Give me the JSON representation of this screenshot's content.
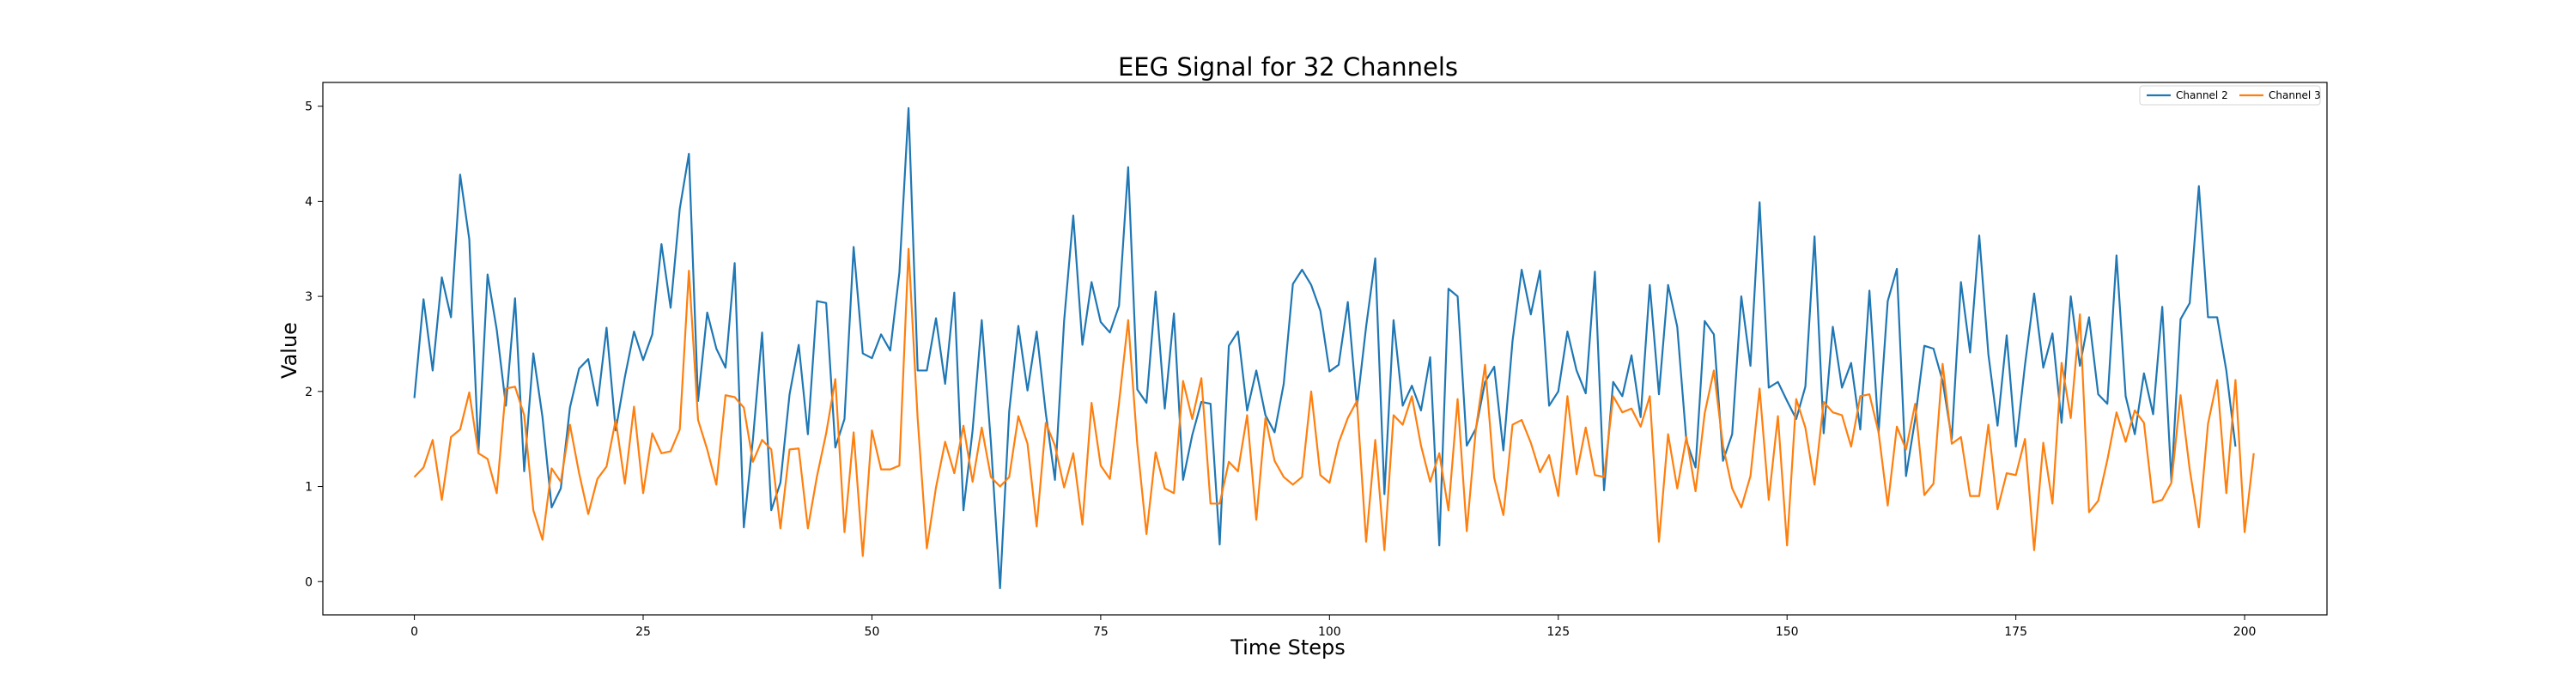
{
  "chart_data": {
    "type": "line",
    "title": "EEG Signal for 32 Channels",
    "xlabel": "Time Steps",
    "ylabel": "Value",
    "xlim": [
      -10,
      209
    ],
    "ylim": [
      -0.35,
      5.25
    ],
    "xticks": [
      0,
      25,
      50,
      75,
      100,
      125,
      150,
      175,
      200
    ],
    "yticks": [
      0,
      1,
      2,
      3,
      4,
      5
    ],
    "grid": false,
    "legend_position": "top-right",
    "series": [
      {
        "name": "Channel 2",
        "color": "#1f77b4",
        "values": [
          1.93,
          2.97,
          2.22,
          3.2,
          2.78,
          4.28,
          3.6,
          1.36,
          3.23,
          2.65,
          1.85,
          2.98,
          1.16,
          2.4,
          1.73,
          0.78,
          0.98,
          1.83,
          2.24,
          2.34,
          1.85,
          2.67,
          1.59,
          2.15,
          2.63,
          2.33,
          2.6,
          3.55,
          2.88,
          3.92,
          4.5,
          1.9,
          2.83,
          2.45,
          2.25,
          3.35,
          0.57,
          1.5,
          2.62,
          0.75,
          1.04,
          1.97,
          2.49,
          1.55,
          2.95,
          2.93,
          1.41,
          1.71,
          3.52,
          2.4,
          2.35,
          2.6,
          2.43,
          3.25,
          4.98,
          2.22,
          2.22,
          2.77,
          2.08,
          3.04,
          0.75,
          1.59,
          2.75,
          1.46,
          -0.07,
          1.79,
          2.69,
          2.01,
          2.63,
          1.77,
          1.07,
          2.74,
          3.85,
          2.49,
          3.15,
          2.73,
          2.62,
          2.9,
          4.36,
          2.02,
          1.88,
          3.05,
          1.82,
          2.82,
          1.07,
          1.54,
          1.89,
          1.87,
          0.39,
          2.48,
          2.63,
          1.8,
          2.22,
          1.75,
          1.57,
          2.08,
          3.13,
          3.28,
          3.12,
          2.85,
          2.21,
          2.28,
          2.94,
          1.84,
          2.68,
          3.4,
          0.92,
          2.75,
          1.85,
          2.06,
          1.8,
          2.36,
          0.38,
          3.08,
          3.0,
          1.43,
          1.61,
          2.1,
          2.26,
          1.38,
          2.53,
          3.28,
          2.81,
          3.27,
          1.85,
          2.0,
          2.63,
          2.22,
          1.98,
          3.26,
          0.96,
          2.1,
          1.95,
          2.38,
          1.73,
          3.12,
          1.97,
          3.12,
          2.68,
          1.48,
          1.2,
          2.74,
          2.6,
          1.27,
          1.55,
          3.0,
          2.27,
          3.99,
          2.04,
          2.1,
          1.9,
          1.71,
          2.05,
          3.63,
          1.56,
          2.68,
          2.04,
          2.3,
          1.6,
          3.06,
          1.57,
          2.95,
          3.29,
          1.11,
          1.71,
          2.48,
          2.45,
          2.11,
          1.5,
          3.15,
          2.41,
          3.64,
          2.39,
          1.64,
          2.59,
          1.42,
          2.28,
          3.03,
          2.25,
          2.61,
          1.67,
          3.0,
          2.27,
          2.78,
          1.97,
          1.87,
          3.43,
          1.95,
          1.55,
          2.19,
          1.76,
          2.89,
          1.05,
          2.76,
          2.93,
          4.16,
          2.78,
          2.78,
          2.22,
          1.42
        ]
      },
      {
        "name": "Channel 3",
        "color": "#ff7f0e",
        "values": [
          1.1,
          1.2,
          1.49,
          0.86,
          1.52,
          1.6,
          1.99,
          1.35,
          1.29,
          0.93,
          2.03,
          2.05,
          1.75,
          0.75,
          0.44,
          1.19,
          1.05,
          1.65,
          1.14,
          0.71,
          1.08,
          1.21,
          1.7,
          1.03,
          1.84,
          0.93,
          1.56,
          1.35,
          1.37,
          1.6,
          3.27,
          1.7,
          1.39,
          1.02,
          1.96,
          1.94,
          1.83,
          1.26,
          1.49,
          1.39,
          0.56,
          1.39,
          1.4,
          0.56,
          1.11,
          1.56,
          2.13,
          0.52,
          1.57,
          0.27,
          1.59,
          1.18,
          1.18,
          1.22,
          3.5,
          1.71,
          0.35,
          0.99,
          1.47,
          1.14,
          1.64,
          1.05,
          1.62,
          1.1,
          1.0,
          1.1,
          1.74,
          1.45,
          0.58,
          1.67,
          1.43,
          0.99,
          1.35,
          0.6,
          1.88,
          1.22,
          1.08,
          1.88,
          2.75,
          1.44,
          0.5,
          1.36,
          0.98,
          0.93,
          2.11,
          1.71,
          2.14,
          0.82,
          0.82,
          1.26,
          1.16,
          1.75,
          0.65,
          1.72,
          1.27,
          1.1,
          1.02,
          1.1,
          2.0,
          1.12,
          1.04,
          1.46,
          1.72,
          1.9,
          0.42,
          1.49,
          0.33,
          1.75,
          1.65,
          1.95,
          1.43,
          1.05,
          1.35,
          0.75,
          1.92,
          0.53,
          1.61,
          2.28,
          1.09,
          0.7,
          1.65,
          1.7,
          1.46,
          1.15,
          1.33,
          0.9,
          1.95,
          1.13,
          1.62,
          1.12,
          1.1,
          1.95,
          1.78,
          1.82,
          1.63,
          1.95,
          0.42,
          1.55,
          0.98,
          1.52,
          0.95,
          1.77,
          2.22,
          1.43,
          0.98,
          0.78,
          1.11,
          2.03,
          0.86,
          1.74,
          0.38,
          1.92,
          1.62,
          1.02,
          1.89,
          1.78,
          1.75,
          1.42,
          1.95,
          1.97,
          1.57,
          0.8,
          1.63,
          1.39,
          1.87,
          0.91,
          1.03,
          2.29,
          1.45,
          1.52,
          0.9,
          0.9,
          1.65,
          0.76,
          1.14,
          1.12,
          1.5,
          0.33,
          1.46,
          0.82,
          2.3,
          1.72,
          2.81,
          0.73,
          0.85,
          1.28,
          1.78,
          1.47,
          1.8,
          1.67,
          0.83,
          0.86,
          1.04,
          1.96,
          1.18,
          0.57,
          1.66,
          2.12,
          0.93,
          2.12,
          0.52,
          1.35
        ]
      }
    ]
  }
}
